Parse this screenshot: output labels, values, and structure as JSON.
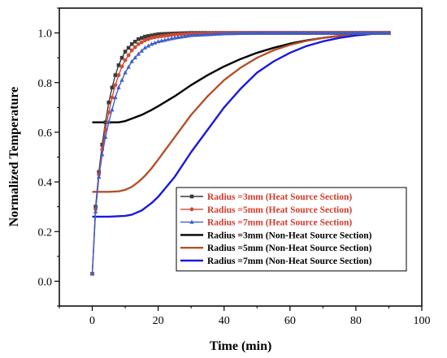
{
  "chart_data": {
    "type": "line",
    "title": "",
    "xlabel": "Time (min)",
    "ylabel": "Normalized Temperature",
    "xlim": [
      -10,
      100
    ],
    "ylim": [
      -0.1,
      1.1
    ],
    "xticks": [
      0,
      20,
      40,
      60,
      80,
      100
    ],
    "yticks": [
      0.0,
      0.2,
      0.4,
      0.6,
      0.8,
      1.0
    ],
    "xtick_labels": [
      "0",
      "20",
      "40",
      "60",
      "80",
      "100"
    ],
    "ytick_labels": [
      "0.0",
      "0.2",
      "0.4",
      "0.6",
      "0.8",
      "1.0"
    ],
    "grid": false,
    "legend_placement": "bottom-right",
    "series": [
      {
        "name": "Radius =3mm (Heat Source Section)",
        "color": "#3a3a3a",
        "marker": "square",
        "x": [
          0,
          1,
          2,
          3,
          4,
          5,
          6,
          7,
          8,
          9,
          10,
          12,
          14,
          16,
          18,
          20,
          25,
          30,
          40,
          50,
          60,
          70,
          80,
          90
        ],
        "y": [
          0.03,
          0.3,
          0.44,
          0.55,
          0.64,
          0.72,
          0.78,
          0.83,
          0.87,
          0.9,
          0.925,
          0.955,
          0.975,
          0.985,
          0.99,
          0.995,
          0.998,
          1.0,
          1.0,
          1.0,
          1.0,
          1.0,
          1.0,
          1.0
        ]
      },
      {
        "name": "Radius =5mm (Heat Source Section)",
        "color": "#d24a35",
        "marker": "circle",
        "x": [
          0,
          1,
          2,
          3,
          4,
          5,
          6,
          7,
          8,
          9,
          10,
          12,
          14,
          16,
          18,
          20,
          25,
          30,
          40,
          50,
          60,
          70,
          80,
          90
        ],
        "y": [
          0.03,
          0.29,
          0.43,
          0.53,
          0.61,
          0.68,
          0.74,
          0.79,
          0.83,
          0.865,
          0.89,
          0.93,
          0.955,
          0.97,
          0.98,
          0.985,
          0.993,
          0.997,
          1.0,
          1.0,
          1.0,
          1.0,
          1.0,
          1.0
        ]
      },
      {
        "name": "Radius =7mm (Heat Source Section)",
        "color": "#3a5fcd",
        "marker": "triangle",
        "x": [
          0,
          1,
          2,
          3,
          4,
          5,
          6,
          7,
          8,
          9,
          10,
          12,
          14,
          16,
          18,
          20,
          25,
          30,
          40,
          50,
          60,
          70,
          80,
          90
        ],
        "y": [
          0.03,
          0.28,
          0.42,
          0.51,
          0.58,
          0.64,
          0.69,
          0.74,
          0.78,
          0.81,
          0.84,
          0.885,
          0.915,
          0.94,
          0.955,
          0.965,
          0.98,
          0.99,
          0.997,
          1.0,
          1.0,
          1.0,
          1.0,
          1.0
        ]
      },
      {
        "name": "Radius =3mm (Non-Heat Source Section)",
        "color": "#000000",
        "marker": "none",
        "x": [
          0,
          5,
          8,
          10,
          12,
          15,
          18,
          20,
          25,
          30,
          35,
          40,
          45,
          50,
          55,
          60,
          65,
          70,
          75,
          80,
          85,
          90
        ],
        "y": [
          0.64,
          0.64,
          0.64,
          0.645,
          0.655,
          0.67,
          0.69,
          0.705,
          0.745,
          0.79,
          0.83,
          0.865,
          0.895,
          0.92,
          0.94,
          0.957,
          0.97,
          0.98,
          0.988,
          0.994,
          0.998,
          1.0
        ]
      },
      {
        "name": "Radius =5mm (Non-Heat Source Section)",
        "color": "#b5502a",
        "marker": "none",
        "x": [
          0,
          5,
          8,
          10,
          12,
          14,
          16,
          18,
          20,
          25,
          30,
          35,
          40,
          45,
          50,
          55,
          60,
          65,
          70,
          75,
          80,
          85,
          90
        ],
        "y": [
          0.36,
          0.36,
          0.362,
          0.368,
          0.38,
          0.4,
          0.425,
          0.455,
          0.49,
          0.58,
          0.67,
          0.745,
          0.81,
          0.86,
          0.9,
          0.93,
          0.952,
          0.968,
          0.98,
          0.988,
          0.994,
          0.998,
          1.0
        ]
      },
      {
        "name": "Radius =7mm (Non-Heat Source Section)",
        "color": "#1a1adc",
        "marker": "none",
        "x": [
          0,
          5,
          10,
          12,
          15,
          18,
          20,
          25,
          30,
          35,
          40,
          45,
          50,
          55,
          60,
          65,
          70,
          75,
          80,
          85,
          90
        ],
        "y": [
          0.26,
          0.26,
          0.263,
          0.268,
          0.285,
          0.315,
          0.34,
          0.42,
          0.52,
          0.61,
          0.7,
          0.775,
          0.84,
          0.885,
          0.92,
          0.947,
          0.966,
          0.98,
          0.99,
          0.996,
          1.0
        ]
      }
    ]
  }
}
